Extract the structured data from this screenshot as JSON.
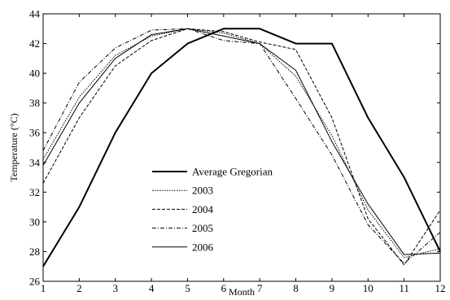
{
  "chart_data": {
    "type": "line",
    "title": "",
    "xlabel": "Month",
    "ylabel": "Temperature (°C)",
    "xlim": [
      1,
      12
    ],
    "ylim": [
      26,
      44
    ],
    "x": [
      1,
      2,
      3,
      4,
      5,
      6,
      7,
      8,
      9,
      10,
      11,
      12
    ],
    "xticks": [
      "1",
      "2",
      "3",
      "4",
      "5",
      "6",
      "7",
      "8",
      "9",
      "10",
      "11",
      "12"
    ],
    "yticks": [
      "26",
      "28",
      "30",
      "32",
      "34",
      "36",
      "38",
      "40",
      "42",
      "44"
    ],
    "grid": false,
    "legend_position": "center-left",
    "series": [
      {
        "name": "Average Gregorian",
        "style": "solid-thick",
        "color": "#000000",
        "values": [
          27,
          31,
          36,
          40,
          42,
          43,
          43,
          42,
          42,
          37,
          33,
          28
        ]
      },
      {
        "name": "2003",
        "style": "dotted",
        "color": "#000000",
        "values": [
          34.2,
          38.4,
          41.2,
          42.5,
          43.0,
          42.7,
          42.0,
          39.8,
          35.8,
          30.8,
          27.6,
          28.2
        ]
      },
      {
        "name": "2004",
        "style": "dashed",
        "color": "#000000",
        "values": [
          32.6,
          37.0,
          40.5,
          42.2,
          43.0,
          42.8,
          42.1,
          41.6,
          37.0,
          30.2,
          27.1,
          30.8
        ]
      },
      {
        "name": "2005",
        "style": "dashdot",
        "color": "#000000",
        "values": [
          34.8,
          39.4,
          41.7,
          42.9,
          43.0,
          42.2,
          42.0,
          38.3,
          34.5,
          29.8,
          27.2,
          29.3
        ]
      },
      {
        "name": "2006",
        "style": "solid-thin",
        "color": "#000000",
        "values": [
          33.8,
          38.0,
          41.0,
          42.6,
          43.0,
          42.5,
          42.0,
          40.2,
          35.4,
          31.2,
          27.8,
          27.9
        ]
      }
    ]
  }
}
